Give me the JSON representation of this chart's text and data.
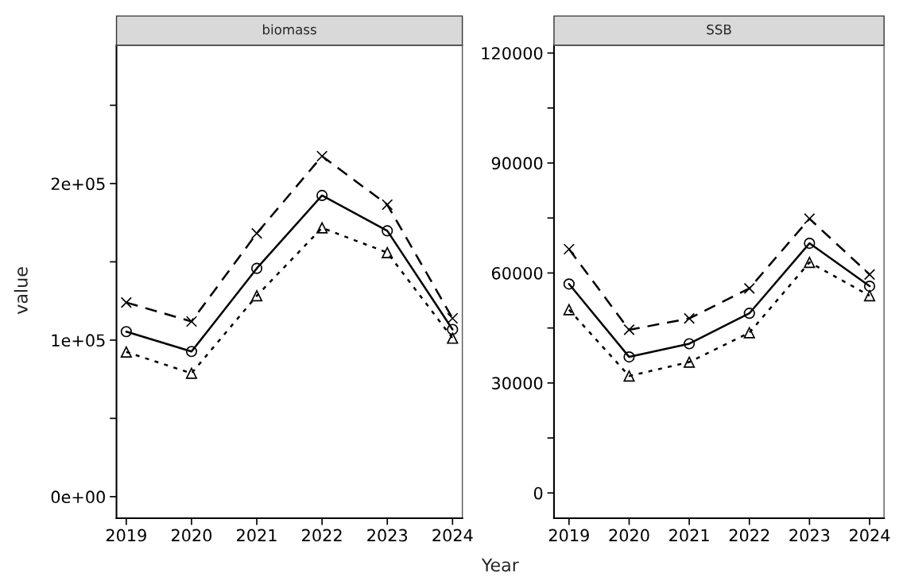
{
  "chart_data": [
    {
      "type": "line",
      "title": "biomass",
      "ylabel": "value",
      "x": [
        2019,
        2020,
        2021,
        2022,
        2023,
        2024
      ],
      "xlim": [
        2018.85,
        2024.15
      ],
      "xticks": [
        2019,
        2020,
        2021,
        2022,
        2023,
        2024
      ],
      "ylim": [
        -13800,
        288300
      ],
      "yticks": [
        {
          "value": 0,
          "label": "0e+00"
        },
        {
          "value": 50000,
          "label": null
        },
        {
          "value": 100000,
          "label": "1e+05"
        },
        {
          "value": 150000,
          "label": null
        },
        {
          "value": 200000,
          "label": "2e+05"
        },
        {
          "value": 250000,
          "label": null
        }
      ],
      "grid": false,
      "legend": false,
      "series": [
        {
          "color": "#000000",
          "marker": "cross",
          "line_style": "dashed",
          "values": [
            124000,
            111900,
            168200,
            217500,
            186500,
            113900
          ]
        },
        {
          "color": "#000000",
          "marker": "circle",
          "line_style": "solid",
          "values": [
            105400,
            92700,
            145800,
            192400,
            169800,
            106800
          ]
        },
        {
          "color": "#000000",
          "marker": "triangle",
          "line_style": "dotted",
          "values": [
            92400,
            78800,
            128300,
            171700,
            155900,
            101200
          ]
        }
      ]
    },
    {
      "type": "line",
      "title": "SSB",
      "xlabel": "Year",
      "x": [
        2019,
        2020,
        2021,
        2022,
        2023,
        2024
      ],
      "xlim": [
        2018.75,
        2024.24
      ],
      "xticks": [
        2019,
        2020,
        2021,
        2022,
        2023,
        2024
      ],
      "ylim": [
        -6900,
        122100
      ],
      "yticks": [
        0,
        {
          "value": 15000,
          "label": null
        },
        30000,
        {
          "value": 45000,
          "label": null
        },
        60000,
        {
          "value": 75000,
          "label": null
        },
        90000,
        {
          "value": 105000,
          "label": null
        },
        120000
      ],
      "grid": false,
      "legend": false,
      "series": [
        {
          "color": "#000000",
          "marker": "cross",
          "line_style": "dashed",
          "values": [
            66500,
            44500,
            47600,
            55800,
            74800,
            59600
          ]
        },
        {
          "color": "#000000",
          "marker": "circle",
          "line_style": "solid",
          "values": [
            57000,
            37100,
            40700,
            49000,
            68100,
            56400
          ]
        },
        {
          "color": "#000000",
          "marker": "triangle",
          "line_style": "dotted",
          "values": [
            50000,
            31900,
            35700,
            43700,
            62900,
            53800
          ]
        }
      ]
    }
  ]
}
